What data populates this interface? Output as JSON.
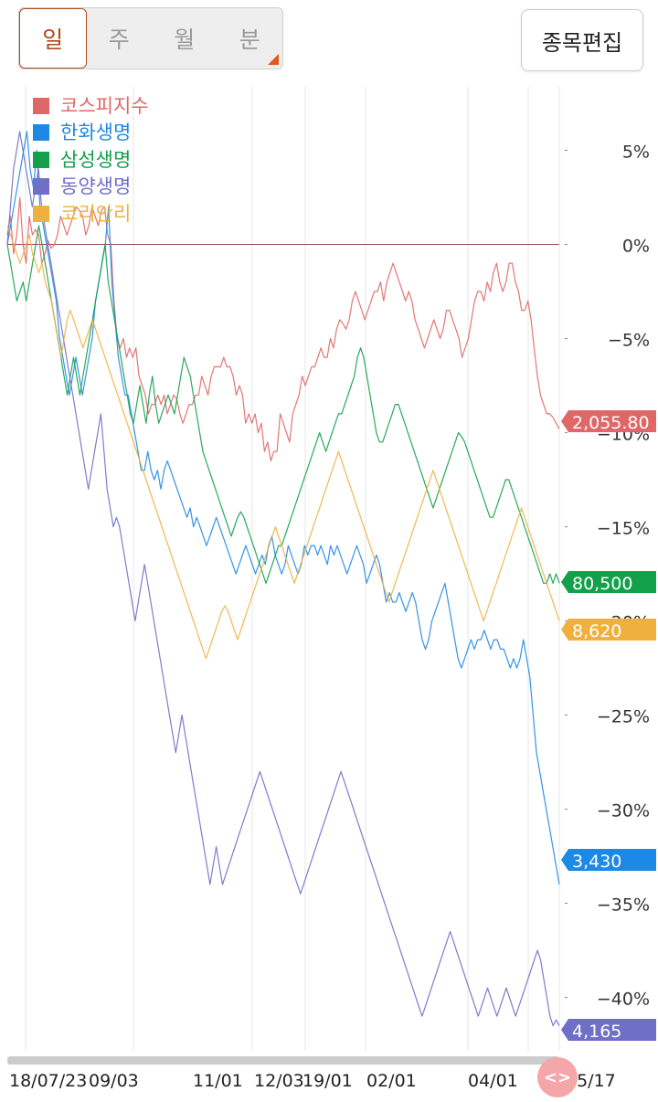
{
  "tabs": [
    {
      "label": "일",
      "active": true
    },
    {
      "label": "주",
      "active": false
    },
    {
      "label": "월",
      "active": false
    },
    {
      "label": "분",
      "active": false
    }
  ],
  "edit_button": "종목편집",
  "scroll_handle": "<>",
  "colors": {
    "kospi": "#e06767",
    "hanwha": "#1e88e5",
    "samsung": "#12a04a",
    "tongyang": "#6f6fc8",
    "korean_re": "#f0b040",
    "zero_line": "#a05050"
  },
  "chart_data": {
    "type": "line",
    "y_unit": "%",
    "ylim": [
      -42,
      7
    ],
    "yticks": [
      5,
      0,
      -5,
      -10,
      -15,
      -20,
      -25,
      -30,
      -35,
      -40
    ],
    "ytick_labels": [
      "5%",
      "0%",
      "−5%",
      "−10%",
      "−15%",
      "−20%",
      "−25%",
      "−30%",
      "−35%",
      "−40%"
    ],
    "x_labels": [
      "18/07/23",
      "09/03",
      "11/01",
      "12/03",
      "19/01",
      "02/01",
      "04/01",
      "05/17"
    ],
    "gridlines": true,
    "legend_position": "top-left",
    "series": [
      {
        "name": "코스피지수",
        "color_key": "kospi",
        "last_value": "2,055.80",
        "values": [
          0.5,
          1.5,
          -0.5,
          0.5,
          2.5,
          0,
          -1,
          1.5,
          0.5,
          0.8,
          0.5,
          -1,
          -0.5,
          0.2,
          -0.2,
          0,
          0.5,
          1.5,
          1,
          0.5,
          1,
          1.5,
          2,
          1.8,
          1.5,
          0.5,
          1,
          2,
          1.5,
          1,
          1.8,
          2,
          0.5,
          0,
          -3,
          -5,
          -5.5,
          -5,
          -6,
          -5.5,
          -6,
          -5.5,
          -7,
          -7.5,
          -8,
          -9,
          -8.5,
          -8.5,
          -8,
          -8.5,
          -8,
          -9,
          -8.5,
          -8,
          -8.2,
          -9,
          -9.5,
          -9,
          -8.5,
          -8.5,
          -8,
          -8,
          -7,
          -7.5,
          -8,
          -7,
          -6.5,
          -6.5,
          -6.5,
          -6,
          -6.5,
          -6.5,
          -7,
          -8,
          -7.5,
          -8,
          -9.5,
          -9,
          -9.5,
          -9,
          -10,
          -9.5,
          -11,
          -10.5,
          -11.5,
          -11,
          -11,
          -9,
          -9.5,
          -10,
          -10.5,
          -9,
          -8.5,
          -8,
          -7,
          -7.5,
          -7,
          -6.5,
          -6.5,
          -6,
          -5.5,
          -6,
          -6,
          -5,
          -5.5,
          -4.5,
          -4,
          -4.2,
          -4.5,
          -4,
          -3,
          -2.5,
          -3,
          -3.5,
          -4,
          -3.5,
          -3,
          -2.5,
          -2.5,
          -2,
          -3,
          -2,
          -1.5,
          -1,
          -1.5,
          -2,
          -2.5,
          -3,
          -2.5,
          -3,
          -4,
          -4.5,
          -5,
          -5.5,
          -5,
          -4.5,
          -4,
          -4.5,
          -5,
          -4.5,
          -3.5,
          -3.5,
          -4,
          -4.5,
          -5,
          -6,
          -5.5,
          -5,
          -4,
          -3,
          -2.5,
          -2.5,
          -3,
          -2,
          -2.5,
          -1.5,
          -1,
          -2,
          -2.5,
          -2,
          -1,
          -1,
          -2,
          -2.5,
          -3.5,
          -3.5,
          -3,
          -4,
          -5.5,
          -7,
          -8,
          -8.5,
          -9,
          -9,
          -9.2,
          -9.5,
          -9.8
        ]
      },
      {
        "name": "한화생명",
        "color_key": "hanwha",
        "last_value": "3,430",
        "values": [
          0,
          1,
          2,
          3,
          4,
          5,
          6,
          4,
          3,
          5,
          2,
          1,
          0,
          -1,
          -2,
          -3,
          -5,
          -6,
          -7,
          -8,
          -7,
          -6,
          -7,
          -8,
          -7,
          -6,
          -5,
          -3,
          -2,
          -1,
          0,
          2,
          -2,
          -4,
          -6,
          -7,
          -8,
          -8,
          -9,
          -10,
          -11,
          -12,
          -12,
          -11,
          -12,
          -12.5,
          -12,
          -13,
          -12,
          -11.5,
          -12,
          -12.5,
          -13,
          -13.5,
          -14,
          -14.5,
          -14,
          -15,
          -14.5,
          -15,
          -15.5,
          -16,
          -15.5,
          -15,
          -14.5,
          -15,
          -15.5,
          -16,
          -16.5,
          -17,
          -17.5,
          -17,
          -16.5,
          -16,
          -16.5,
          -17,
          -17.5,
          -17,
          -16.5,
          -17,
          -16,
          -15.5,
          -16.5,
          -17,
          -17.5,
          -17,
          -16,
          -16.5,
          -17,
          -17.5,
          -17,
          -16,
          -16.5,
          -16,
          -16,
          -16.5,
          -16,
          -16.5,
          -17,
          -16,
          -16.5,
          -16,
          -16.5,
          -17,
          -17.5,
          -17,
          -16.5,
          -16,
          -16.5,
          -17,
          -18,
          -17.5,
          -17,
          -16.5,
          -17,
          -18,
          -19,
          -18.5,
          -19,
          -19,
          -18.5,
          -19,
          -19.5,
          -19,
          -18.5,
          -19,
          -20,
          -21,
          -21.5,
          -21,
          -20,
          -19.5,
          -19,
          -18.5,
          -18,
          -19,
          -20,
          -21,
          -22,
          -22.5,
          -22,
          -21.5,
          -21,
          -21.5,
          -21,
          -21,
          -20.5,
          -21,
          -21.5,
          -21,
          -21,
          -21.5,
          -21.5,
          -22,
          -22.5,
          -22,
          -22.5,
          -22,
          -21,
          -22,
          -23,
          -25,
          -27,
          -28,
          -29,
          -30,
          -31,
          -32,
          -33,
          -34
        ]
      },
      {
        "name": "삼성생명",
        "color_key": "samsung",
        "last_value": "80,500",
        "values": [
          0,
          -1,
          -2,
          -3,
          -2.5,
          -2,
          -3,
          -2,
          -1,
          0,
          1,
          0,
          -1,
          -2,
          -3,
          -4,
          -5,
          -6,
          -7,
          -8,
          -7,
          -6,
          -7,
          -8,
          -7,
          -6,
          -5,
          -4,
          -3,
          -2,
          -1,
          0,
          -2,
          -3,
          -4,
          -5,
          -6,
          -7,
          -8,
          -9,
          -9.5,
          -8.5,
          -7.5,
          -8.5,
          -9.5,
          -8,
          -7,
          -8.5,
          -9.5,
          -9,
          -8.5,
          -8,
          -8.5,
          -9,
          -8,
          -7,
          -6,
          -6.5,
          -7,
          -8,
          -9,
          -10,
          -11,
          -11.5,
          -12,
          -12.5,
          -13,
          -13.5,
          -14,
          -14.5,
          -15,
          -15.5,
          -15,
          -14.5,
          -14.2,
          -14.5,
          -15,
          -15.5,
          -16,
          -16.5,
          -17,
          -17.5,
          -18,
          -17.5,
          -17,
          -16.5,
          -16,
          -16,
          -15.5,
          -15,
          -14.5,
          -14,
          -13.5,
          -13,
          -12.5,
          -12,
          -11.5,
          -11,
          -10.5,
          -10,
          -10.5,
          -11,
          -10.5,
          -10,
          -9.5,
          -9,
          -9,
          -8.5,
          -8,
          -7.5,
          -7,
          -6,
          -5.5,
          -6,
          -7,
          -8,
          -9,
          -10,
          -10.5,
          -10.5,
          -10,
          -9.5,
          -9,
          -8.5,
          -8.5,
          -9,
          -9.5,
          -10,
          -10.5,
          -11,
          -11.5,
          -12,
          -12.5,
          -13,
          -13.5,
          -14,
          -13.5,
          -13,
          -12.5,
          -12,
          -11.5,
          -11,
          -10.5,
          -10,
          -10.2,
          -10.5,
          -11,
          -11.5,
          -12,
          -12.5,
          -13,
          -13.5,
          -14,
          -14.5,
          -14.5,
          -14,
          -13.5,
          -13,
          -12.5,
          -12.5,
          -13,
          -13.5,
          -14,
          -14.5,
          -15,
          -15.5,
          -16,
          -16.5,
          -17,
          -17.5,
          -18,
          -18,
          -17.5,
          -18,
          -17.5,
          -18
        ]
      },
      {
        "name": "동양생명",
        "color_key": "tongyang",
        "last_value": "4,165",
        "values": [
          0,
          2,
          4,
          5,
          6,
          5,
          4,
          3,
          2,
          3,
          4,
          2,
          1,
          0,
          -1,
          -2,
          -3,
          -4,
          -5,
          -6,
          -7,
          -8,
          -9,
          -10,
          -11,
          -12,
          -13,
          -12,
          -11,
          -10,
          -9,
          -11,
          -13,
          -14,
          -15,
          -14.5,
          -15,
          -16,
          -17,
          -18,
          -19,
          -20,
          -19,
          -18,
          -17,
          -18,
          -19,
          -20,
          -21,
          -22,
          -23,
          -24,
          -25,
          -26,
          -27,
          -26,
          -25,
          -26,
          -27,
          -28,
          -29,
          -30,
          -31,
          -32,
          -33,
          -34,
          -33,
          -32,
          -33,
          -34,
          -33.5,
          -33,
          -32.5,
          -32,
          -31.5,
          -31,
          -30.5,
          -30,
          -29.5,
          -29,
          -28.5,
          -28,
          -28.5,
          -29,
          -29.5,
          -30,
          -30.5,
          -31,
          -31.5,
          -32,
          -32.5,
          -33,
          -33.5,
          -34,
          -34.5,
          -34,
          -33.5,
          -33,
          -32.5,
          -32,
          -31.5,
          -31,
          -30.5,
          -30,
          -29.5,
          -29,
          -28.5,
          -28,
          -28.5,
          -29,
          -29.5,
          -30,
          -30.5,
          -31,
          -31.5,
          -32,
          -32.5,
          -33,
          -33.5,
          -34,
          -34.5,
          -35,
          -35.5,
          -36,
          -36.5,
          -37,
          -37.5,
          -38,
          -38.5,
          -39,
          -39.5,
          -40,
          -40.5,
          -41,
          -40.5,
          -40,
          -39.5,
          -39,
          -38.5,
          -38,
          -37.5,
          -37,
          -36.5,
          -37,
          -37.5,
          -38,
          -38.5,
          -39,
          -39.5,
          -40,
          -40.5,
          -41,
          -40.5,
          -40,
          -39.5,
          -40,
          -40.5,
          -41,
          -40.5,
          -40,
          -39.5,
          -40,
          -40.5,
          -41,
          -40.5,
          -40,
          -39.5,
          -39,
          -38.5,
          -38,
          -37.5,
          -38,
          -39,
          -40,
          -41,
          -41.5,
          -41.2,
          -41.5
        ]
      },
      {
        "name": "코리안리",
        "color_key": "korean_re",
        "last_value": "8,620",
        "values": [
          1,
          0.5,
          0,
          -0.5,
          -1,
          -0.5,
          0,
          0.5,
          -0.5,
          -1,
          -1.5,
          -1,
          -2,
          -2.5,
          -3,
          -4,
          -5,
          -6,
          -5,
          -4,
          -3.5,
          -4,
          -4.5,
          -5,
          -5.5,
          -5,
          -4.5,
          -4,
          -4.5,
          -5,
          -5.5,
          -6,
          -6.5,
          -7,
          -7.5,
          -8,
          -8.5,
          -9,
          -9.5,
          -10,
          -10.5,
          -11,
          -11.5,
          -12,
          -12.5,
          -13,
          -13.5,
          -14,
          -14.5,
          -15,
          -15.5,
          -16,
          -16.5,
          -17,
          -17.5,
          -18,
          -18.5,
          -19,
          -19.5,
          -20,
          -20.5,
          -21,
          -21.5,
          -22,
          -21.5,
          -21,
          -20.5,
          -20,
          -19.5,
          -19.2,
          -19.5,
          -20,
          -20.5,
          -21,
          -20.5,
          -20,
          -19.5,
          -19,
          -18.5,
          -18,
          -17.5,
          -17,
          -16.5,
          -16,
          -15.5,
          -15,
          -15.5,
          -16,
          -16.5,
          -17,
          -17.5,
          -18,
          -17.5,
          -17,
          -16.5,
          -16,
          -15.5,
          -15,
          -14.5,
          -14,
          -13.5,
          -13,
          -12.5,
          -12,
          -11.5,
          -11,
          -11.5,
          -12,
          -12.5,
          -13,
          -13.5,
          -14,
          -14.5,
          -15,
          -15.5,
          -16,
          -16.5,
          -17,
          -17.5,
          -18,
          -18.5,
          -19,
          -18.5,
          -18,
          -17.5,
          -17,
          -16.5,
          -16,
          -15.5,
          -15,
          -14.5,
          -14,
          -13.5,
          -13,
          -12.5,
          -12,
          -12.5,
          -13,
          -13.5,
          -14,
          -14.5,
          -15,
          -15.5,
          -16,
          -16.5,
          -17,
          -17.5,
          -18,
          -18.5,
          -19,
          -19.5,
          -20,
          -19.5,
          -19,
          -18.5,
          -18,
          -17.5,
          -17,
          -16.5,
          -16,
          -15.5,
          -15,
          -14.5,
          -14,
          -14.5,
          -15,
          -15.5,
          -16,
          -16.5,
          -17,
          -17.5,
          -18,
          -18.5,
          -19,
          -19.5,
          -20
        ]
      }
    ]
  }
}
